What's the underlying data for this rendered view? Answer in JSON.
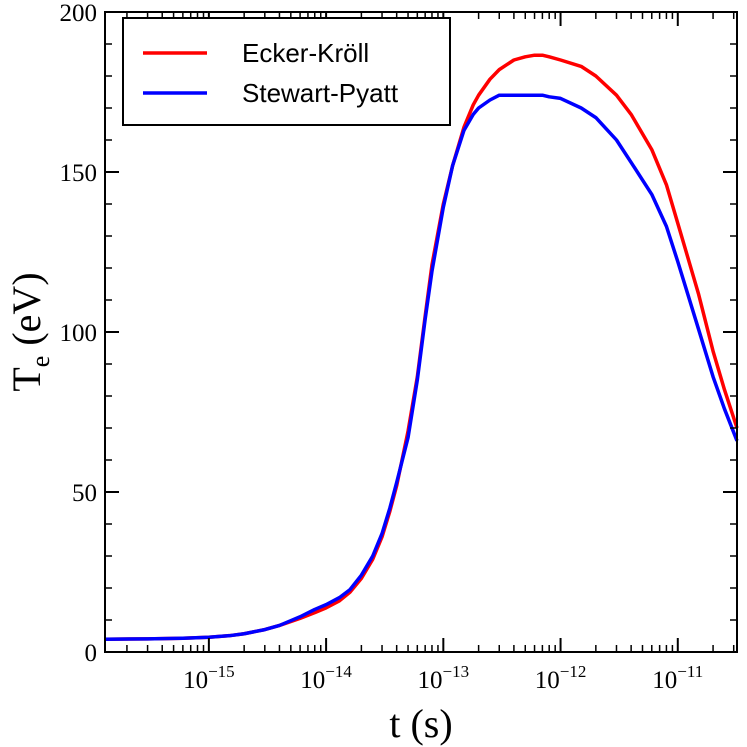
{
  "chart_data": {
    "type": "line",
    "xlabel": "t (s)",
    "ylabel": {
      "base": "T",
      "sub": "e",
      "rest": " (eV)"
    },
    "x_scale": "log",
    "xlim": [
      1.3e-16,
      3.2e-11
    ],
    "ylim": [
      0,
      200
    ],
    "grid": false,
    "legend_position": "top-left",
    "y_ticks": [
      {
        "value": 0,
        "label": "0"
      },
      {
        "value": 50,
        "label": "50"
      },
      {
        "value": 100,
        "label": "100"
      },
      {
        "value": 150,
        "label": "150"
      },
      {
        "value": 200,
        "label": "200"
      }
    ],
    "x_ticks": [
      {
        "value": 1e-15,
        "base": "10",
        "exp": "−15"
      },
      {
        "value": 1e-14,
        "base": "10",
        "exp": "−14"
      },
      {
        "value": 1e-13,
        "base": "10",
        "exp": "−13"
      },
      {
        "value": 1e-12,
        "base": "10",
        "exp": "−12"
      },
      {
        "value": 1e-11,
        "base": "10",
        "exp": "−11"
      }
    ],
    "series": [
      {
        "name": "Ecker-Kröll",
        "color": "#ff0000",
        "x": [
          1.3e-16,
          3e-16,
          6e-16,
          1e-15,
          1.5e-15,
          2e-15,
          3e-15,
          4e-15,
          6e-15,
          8e-15,
          1e-14,
          1.3e-14,
          1.6e-14,
          2e-14,
          2.5e-14,
          3e-14,
          3.5e-14,
          4e-14,
          5e-14,
          6e-14,
          7e-14,
          8e-14,
          1e-13,
          1.2e-13,
          1.5e-13,
          1.8e-13,
          2e-13,
          2.5e-13,
          3e-13,
          4e-13,
          5e-13,
          6e-13,
          7e-13,
          8e-13,
          1e-12,
          1.5e-12,
          2e-12,
          3e-12,
          4e-12,
          6e-12,
          8e-12,
          1e-11,
          1.5e-11,
          2e-11,
          2.5e-11,
          3.2e-11
        ],
        "y": [
          4,
          4.1,
          4.3,
          4.6,
          5.1,
          5.7,
          7,
          8.3,
          10.5,
          12.3,
          13.8,
          16,
          18.7,
          23,
          29,
          36,
          44,
          52,
          69,
          86,
          105,
          121,
          140,
          152,
          164,
          171,
          174,
          179,
          182,
          185,
          186,
          186.5,
          186.5,
          186,
          185,
          183,
          180,
          174,
          168,
          157,
          146,
          134,
          112,
          94,
          82,
          70
        ]
      },
      {
        "name": "Stewart-Pyatt",
        "color": "#0000ff",
        "x": [
          1.3e-16,
          3e-16,
          6e-16,
          1e-15,
          1.5e-15,
          2e-15,
          3e-15,
          4e-15,
          6e-15,
          8e-15,
          1e-14,
          1.3e-14,
          1.6e-14,
          2e-14,
          2.5e-14,
          3e-14,
          3.5e-14,
          4e-14,
          5e-14,
          6e-14,
          7e-14,
          8e-14,
          1e-13,
          1.2e-13,
          1.5e-13,
          1.8e-13,
          2e-13,
          2.5e-13,
          3e-13,
          4e-13,
          5e-13,
          6e-13,
          7e-13,
          8e-13,
          1e-12,
          1.5e-12,
          2e-12,
          3e-12,
          4e-12,
          6e-12,
          8e-12,
          1e-11,
          1.5e-11,
          2e-11,
          2.5e-11,
          3.2e-11
        ],
        "y": [
          4,
          4.1,
          4.3,
          4.6,
          5.1,
          5.7,
          7,
          8.3,
          11,
          13.3,
          14.8,
          17,
          19.5,
          24,
          30,
          37,
          45,
          53,
          67,
          85,
          104,
          119,
          139,
          152,
          163,
          168,
          170,
          172.5,
          174,
          174,
          174,
          174,
          174,
          173.5,
          173,
          170,
          167,
          160,
          153,
          143,
          133,
          122,
          101,
          86,
          76,
          66
        ]
      }
    ]
  }
}
